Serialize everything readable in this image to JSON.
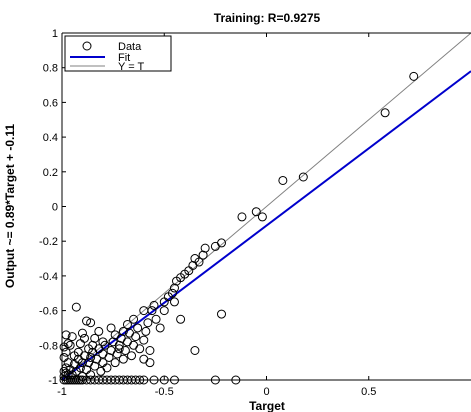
{
  "chart_data": {
    "type": "scatter",
    "title": "Training: R=0.9275",
    "xlabel": "Target",
    "ylabel": "Output ~= 0.89*Target + -0.11",
    "xlim": [
      -1,
      1
    ],
    "ylim": [
      -1,
      1
    ],
    "xticks": [
      -1,
      -0.5,
      0,
      0.5
    ],
    "xtick_labels": [
      "-1",
      "-0.5",
      "0",
      "0.5"
    ],
    "yticks": [
      -1,
      -0.8,
      -0.6,
      -0.4,
      -0.2,
      0,
      0.2,
      0.4,
      0.6,
      0.8,
      1
    ],
    "ytick_labels": [
      "-1",
      "-0.8",
      "-0.6",
      "-0.4",
      "-0.2",
      "0",
      "0.2",
      "0.4",
      "0.6",
      "0.8",
      "1"
    ],
    "grid": false,
    "legend_position": "top-left",
    "legend": {
      "data_label": "Data",
      "fit_label": "Fit",
      "identity_label": "Y = T"
    },
    "colors": {
      "data": "#000000",
      "fit": "#0000cc",
      "identity": "#808080"
    },
    "fit_line": {
      "slope": 0.89,
      "intercept": -0.11
    },
    "identity_line": {
      "slope": 1,
      "intercept": 0
    },
    "series": [
      {
        "name": "Data",
        "points": [
          [
            -0.99,
            -1
          ],
          [
            -0.98,
            -1
          ],
          [
            -0.97,
            -1
          ],
          [
            -0.96,
            -1
          ],
          [
            -0.95,
            -1
          ],
          [
            -0.94,
            -1
          ],
          [
            -0.93,
            -1
          ],
          [
            -0.92,
            -1
          ],
          [
            -0.91,
            -1
          ],
          [
            -0.9,
            -1
          ],
          [
            -0.88,
            -1
          ],
          [
            -0.86,
            -1
          ],
          [
            -0.84,
            -1
          ],
          [
            -0.82,
            -1
          ],
          [
            -0.8,
            -1
          ],
          [
            -0.78,
            -1
          ],
          [
            -0.76,
            -1
          ],
          [
            -0.74,
            -1
          ],
          [
            -0.72,
            -1
          ],
          [
            -0.7,
            -1
          ],
          [
            -0.68,
            -1
          ],
          [
            -0.66,
            -1
          ],
          [
            -0.64,
            -1
          ],
          [
            -0.62,
            -1
          ],
          [
            -0.6,
            -1
          ],
          [
            -0.55,
            -1
          ],
          [
            -0.5,
            -1
          ],
          [
            -0.45,
            -1
          ],
          [
            -0.25,
            -1
          ],
          [
            -0.15,
            -1
          ],
          [
            -0.99,
            -0.98
          ],
          [
            -0.98,
            -0.96
          ],
          [
            -0.98,
            -0.93
          ],
          [
            -0.97,
            -0.9
          ],
          [
            -0.99,
            -0.87
          ],
          [
            -0.98,
            -0.84
          ],
          [
            -0.99,
            -0.81
          ],
          [
            -0.97,
            -0.79
          ],
          [
            -0.98,
            -0.74
          ],
          [
            -0.99,
            -0.95
          ],
          [
            -0.97,
            -0.97
          ],
          [
            -0.96,
            -0.94
          ],
          [
            -0.95,
            -0.97
          ],
          [
            -0.94,
            -0.91
          ],
          [
            -0.93,
            -0.95
          ],
          [
            -0.92,
            -0.88
          ],
          [
            -0.91,
            -0.93
          ],
          [
            -0.9,
            -0.98
          ],
          [
            -0.9,
            -0.9
          ],
          [
            -0.89,
            -0.86
          ],
          [
            -0.88,
            -0.94
          ],
          [
            -0.87,
            -0.9
          ],
          [
            -0.86,
            -0.97
          ],
          [
            -0.86,
            -0.87
          ],
          [
            -0.85,
            -0.84
          ],
          [
            -0.84,
            -0.92
          ],
          [
            -0.83,
            -0.88
          ],
          [
            -0.82,
            -0.82
          ],
          [
            -0.81,
            -0.95
          ],
          [
            -0.8,
            -0.9
          ],
          [
            -0.8,
            -0.85
          ],
          [
            -0.79,
            -0.8
          ],
          [
            -0.78,
            -0.93
          ],
          [
            -0.77,
            -0.87
          ],
          [
            -0.76,
            -0.83
          ],
          [
            -0.75,
            -0.78
          ],
          [
            -0.74,
            -0.9
          ],
          [
            -0.73,
            -0.85
          ],
          [
            -0.72,
            -0.8
          ],
          [
            -0.71,
            -0.76
          ],
          [
            -0.7,
            -0.88
          ],
          [
            -0.69,
            -0.83
          ],
          [
            -0.68,
            -0.78
          ],
          [
            -0.67,
            -0.73
          ],
          [
            -0.66,
            -0.86
          ],
          [
            -0.65,
            -0.8
          ],
          [
            -0.64,
            -0.75
          ],
          [
            -0.63,
            -0.7
          ],
          [
            -0.62,
            -0.82
          ],
          [
            -0.6,
            -0.77
          ],
          [
            -0.59,
            -0.72
          ],
          [
            -0.58,
            -0.67
          ],
          [
            -0.57,
            -0.83
          ],
          [
            -0.56,
            -0.6
          ],
          [
            -0.55,
            -0.57
          ],
          [
            -0.54,
            -0.65
          ],
          [
            -0.52,
            -0.7
          ],
          [
            -0.5,
            -0.55
          ],
          [
            -0.48,
            -0.52
          ],
          [
            -0.46,
            -0.5
          ],
          [
            -0.45,
            -0.47
          ],
          [
            -0.44,
            -0.43
          ],
          [
            -0.42,
            -0.41
          ],
          [
            -0.4,
            -0.39
          ],
          [
            -0.38,
            -0.37
          ],
          [
            -0.36,
            -0.34
          ],
          [
            -0.35,
            -0.3
          ],
          [
            -0.33,
            -0.32
          ],
          [
            -0.31,
            -0.28
          ],
          [
            -0.3,
            -0.24
          ],
          [
            -0.25,
            -0.23
          ],
          [
            -0.22,
            -0.21
          ],
          [
            -0.12,
            -0.06
          ],
          [
            -0.05,
            -0.03
          ],
          [
            -0.02,
            -0.06
          ],
          [
            0.08,
            0.15
          ],
          [
            0.18,
            0.17
          ],
          [
            0.58,
            0.54
          ],
          [
            0.72,
            0.75
          ],
          [
            -0.93,
            -0.58
          ],
          [
            -0.88,
            -0.66
          ],
          [
            -0.86,
            -0.67
          ],
          [
            -0.9,
            -0.73
          ],
          [
            -0.84,
            -0.76
          ],
          [
            -0.82,
            -0.72
          ],
          [
            -0.72,
            -0.82
          ],
          [
            -0.6,
            -0.88
          ],
          [
            -0.57,
            -0.9
          ],
          [
            -0.5,
            -0.6
          ],
          [
            -0.45,
            -0.55
          ],
          [
            -0.42,
            -0.65
          ],
          [
            -0.35,
            -0.83
          ],
          [
            -0.22,
            -0.62
          ],
          [
            -0.6,
            -0.6
          ],
          [
            -0.65,
            -0.65
          ],
          [
            -0.68,
            -0.68
          ],
          [
            -0.7,
            -0.72
          ],
          [
            -0.74,
            -0.74
          ],
          [
            -0.76,
            -0.7
          ],
          [
            -0.8,
            -0.78
          ],
          [
            -0.85,
            -0.8
          ],
          [
            -0.87,
            -0.82
          ],
          [
            -0.92,
            -0.84
          ],
          [
            -0.94,
            -0.86
          ],
          [
            -0.96,
            -0.8
          ],
          [
            -0.95,
            -0.75
          ],
          [
            -0.91,
            -0.79
          ],
          [
            -0.89,
            -0.76
          ]
        ]
      }
    ]
  }
}
